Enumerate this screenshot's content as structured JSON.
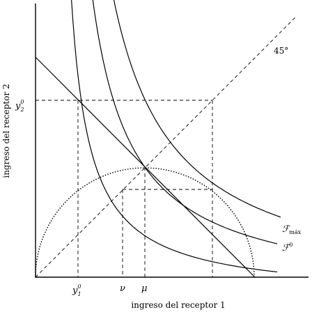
{
  "diagram": {
    "xlabel": "ingreso del receptor 1",
    "ylabel": "ingreso del receptor 2",
    "diag_label": "45°",
    "ticks": {
      "y1": {
        "base": "y",
        "sub": "1",
        "sup": "0"
      },
      "nu": "ν",
      "mu": "μ",
      "y2": {
        "base": "y",
        "sub": "2",
        "sup": "0"
      }
    },
    "curve_labels": {
      "fmax": {
        "base": "ℱ",
        "sub": "máx"
      },
      "f0": {
        "base": "ℱ",
        "sup": "0"
      }
    }
  }
}
